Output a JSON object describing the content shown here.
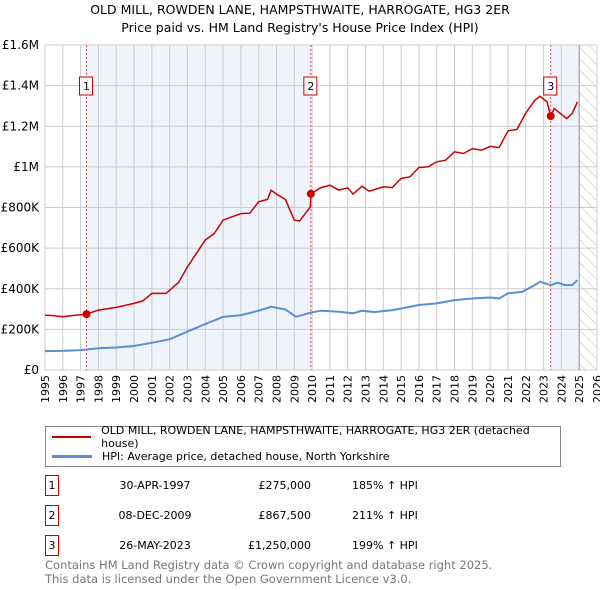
{
  "title_line1": "OLD MILL, ROWDEN LANE, HAMPSTHWAITE, HARROGATE, HG3 2ER",
  "title_line2": "Price paid vs. HM Land Registry's House Price Index (HPI)",
  "chart_data": {
    "type": "line",
    "xlim": [
      1995,
      2026
    ],
    "ylim": [
      0,
      1600000
    ],
    "x_ticks": [
      "1995",
      "1996",
      "1997",
      "1998",
      "1999",
      "2000",
      "2001",
      "2002",
      "2003",
      "2004",
      "2005",
      "2006",
      "2007",
      "2008",
      "2009",
      "2010",
      "2011",
      "2012",
      "2013",
      "2014",
      "2015",
      "2016",
      "2017",
      "2018",
      "2019",
      "2020",
      "2021",
      "2022",
      "2023",
      "2024",
      "2025",
      "2026"
    ],
    "y_ticks": [
      {
        "v": 0,
        "label": "£0"
      },
      {
        "v": 200000,
        "label": "£200K"
      },
      {
        "v": 400000,
        "label": "£400K"
      },
      {
        "v": 600000,
        "label": "£600K"
      },
      {
        "v": 800000,
        "label": "£800K"
      },
      {
        "v": 1000000,
        "label": "£1M"
      },
      {
        "v": 1200000,
        "label": "£1.2M"
      },
      {
        "v": 1400000,
        "label": "£1.4M"
      },
      {
        "v": 1600000,
        "label": "£1.6M"
      }
    ],
    "shaded_ranges": [
      [
        1997.33,
        2009.93
      ],
      [
        2023.4,
        2025.0
      ]
    ],
    "hatched_from": 2025.0,
    "series": [
      {
        "name": "OLD MILL, ROWDEN LANE, HAMPSTHWAITE, HARROGATE, HG3 2ER (detached house)",
        "color": "#cc0000",
        "x": [
          1995,
          1995.5,
          1996,
          1996.5,
          1997,
          1997.33,
          1998,
          1999,
          2000,
          2000.5,
          2001,
          2001.8,
          2002.5,
          2003,
          2003.5,
          2004,
          2004.5,
          2005,
          2005.5,
          2006,
          2006.5,
          2007,
          2007.5,
          2007.7,
          2008,
          2008.5,
          2009,
          2009.3,
          2009.9,
          2009.93,
          2010.5,
          2011,
          2011.5,
          2012,
          2012.3,
          2012.8,
          2013.2,
          2014,
          2014.5,
          2015,
          2015.5,
          2016,
          2016.5,
          2017,
          2017.5,
          2018,
          2018.5,
          2019,
          2019.5,
          2020,
          2020.5,
          2021,
          2021.5,
          2022,
          2022.5,
          2022.8,
          2023.2,
          2023.4,
          2023.6,
          2024,
          2024.3,
          2024.6,
          2024.9
        ],
        "y": [
          270000,
          268000,
          262000,
          268000,
          272000,
          275000,
          295000,
          308000,
          328000,
          340000,
          377000,
          377000,
          431000,
          508000,
          574000,
          640000,
          672000,
          738000,
          754000,
          770000,
          772000,
          828000,
          840000,
          885000,
          866000,
          840000,
          738000,
          734000,
          803000,
          867500,
          898000,
          910000,
          885000,
          897000,
          866000,
          905000,
          880000,
          902000,
          898000,
          943000,
          951000,
          997000,
          1000000,
          1025000,
          1033000,
          1074000,
          1066000,
          1090000,
          1082000,
          1101000,
          1095000,
          1177000,
          1184000,
          1265000,
          1328000,
          1348000,
          1320000,
          1250000,
          1287000,
          1259000,
          1238000,
          1262000,
          1320000
        ]
      },
      {
        "name": "HPI: Average price, detached house, North Yorkshire",
        "color": "#5b8fd4",
        "x": [
          1995,
          1996,
          1997,
          1998,
          1999,
          2000,
          2001,
          2002,
          2003,
          2004,
          2005,
          2006,
          2007,
          2007.7,
          2008.5,
          2009.1,
          2009.9,
          2010.5,
          2011.5,
          2012.3,
          2012.8,
          2013.5,
          2014.5,
          2015,
          2016,
          2017,
          2018,
          2019,
          2020,
          2020.5,
          2021,
          2021.8,
          2022.5,
          2022.8,
          2023.4,
          2023.8,
          2024.2,
          2024.6,
          2024.9
        ],
        "y": [
          93000,
          94000,
          98000,
          107000,
          111000,
          118000,
          134000,
          151000,
          189000,
          226000,
          262000,
          270000,
          292000,
          311000,
          298000,
          262000,
          282000,
          292000,
          287000,
          279000,
          292000,
          285000,
          295000,
          303000,
          320000,
          328000,
          344000,
          352000,
          357000,
          352000,
          377000,
          385000,
          418000,
          434000,
          418000,
          430000,
          418000,
          418000,
          442000
        ]
      }
    ],
    "sales": [
      {
        "n": "1",
        "x": 1997.33,
        "y": 275000,
        "date": "30-APR-1997",
        "price": "£275,000",
        "hpi": "185% ↑ HPI"
      },
      {
        "n": "2",
        "x": 2009.93,
        "y": 867500,
        "date": "08-DEC-2009",
        "price": "£867,500",
        "hpi": "211% ↑ HPI"
      },
      {
        "n": "3",
        "x": 2023.4,
        "y": 1250000,
        "date": "26-MAY-2023",
        "price": "£1,250,000",
        "hpi": "199% ↑ HPI"
      }
    ]
  },
  "legend": {
    "red": "OLD MILL, ROWDEN LANE, HAMPSTHWAITE, HARROGATE, HG3 2ER (detached house)",
    "blue": "HPI: Average price, detached house, North Yorkshire"
  },
  "footer": {
    "line1": "Contains HM Land Registry data © Crown copyright and database right 2025.",
    "line2": "This data is licensed under the Open Government Licence v3.0."
  }
}
